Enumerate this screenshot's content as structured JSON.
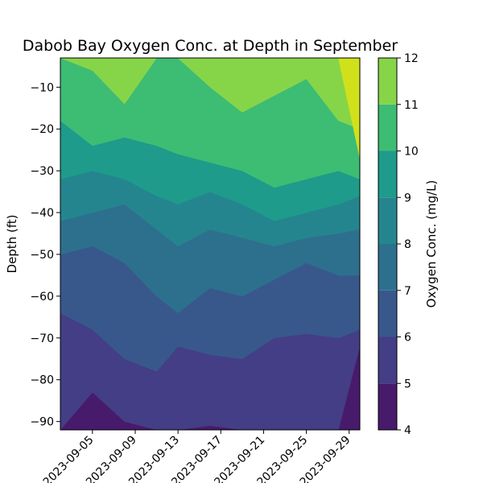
{
  "chart_data": {
    "type": "contour",
    "title": "Dabob Bay Oxygen Conc. at Depth in September",
    "xlabel": "",
    "ylabel": "Depth (ft)",
    "colorbar_label": "Oxygen Conc. (mg/L)",
    "xlim": [
      "2023-09-02",
      "2023-09-30"
    ],
    "ylim": [
      -92,
      -3
    ],
    "x_ticks": [
      "2023-09-05",
      "2023-09-09",
      "2023-09-13",
      "2023-09-17",
      "2023-09-21",
      "2023-09-25",
      "2023-09-29"
    ],
    "y_ticks": [
      -10,
      -20,
      -30,
      -40,
      -50,
      -60,
      -70,
      -80,
      -90
    ],
    "levels": [
      4,
      5,
      6,
      7,
      8,
      9,
      10,
      11,
      12
    ],
    "level_colors": [
      "#481a6c",
      "#433e85",
      "#38588c",
      "#2d708e",
      "#25858e",
      "#1e9b8a",
      "#3dbc74",
      "#86d549",
      "#d0e11c"
    ],
    "colormap": "viridis",
    "colorbar_ticks": [
      4,
      5,
      6,
      7,
      8,
      9,
      10,
      11,
      12
    ],
    "approx_boundary_depths_ft": {
      "dates": [
        "2023-09-02",
        "2023-09-05",
        "2023-09-08",
        "2023-09-11",
        "2023-09-13",
        "2023-09-16",
        "2023-09-19",
        "2023-09-22",
        "2023-09-25",
        "2023-09-28",
        "2023-09-30"
      ],
      "conc_4_to_5": [
        -92,
        -83,
        -90,
        -92,
        -92,
        -91,
        -92,
        -92,
        -92,
        -92,
        -72
      ],
      "conc_5_to_6": [
        -64,
        -68,
        -75,
        -78,
        -72,
        -74,
        -75,
        -70,
        -69,
        -70,
        -68
      ],
      "conc_6_to_7": [
        -50,
        -48,
        -52,
        -60,
        -64,
        -58,
        -60,
        -56,
        -52,
        -55,
        -55
      ],
      "conc_7_to_8": [
        -42,
        -40,
        -38,
        -44,
        -48,
        -44,
        -46,
        -48,
        -46,
        -45,
        -44
      ],
      "conc_8_to_9": [
        -32,
        -30,
        -32,
        -36,
        -38,
        -35,
        -38,
        -42,
        -40,
        -38,
        -36
      ],
      "conc_9_to_10": [
        -18,
        -24,
        -22,
        -24,
        -26,
        -28,
        -30,
        -34,
        -32,
        -30,
        -32
      ],
      "conc_10_to_11": [
        -3,
        -6,
        -14,
        -3,
        -3,
        -10,
        -16,
        -12,
        -8,
        -18,
        -20
      ],
      "conc_11_to_12": [
        -3,
        -3,
        -3,
        -3,
        -3,
        -3,
        -3,
        -3,
        -3,
        -3,
        -27
      ]
    }
  }
}
